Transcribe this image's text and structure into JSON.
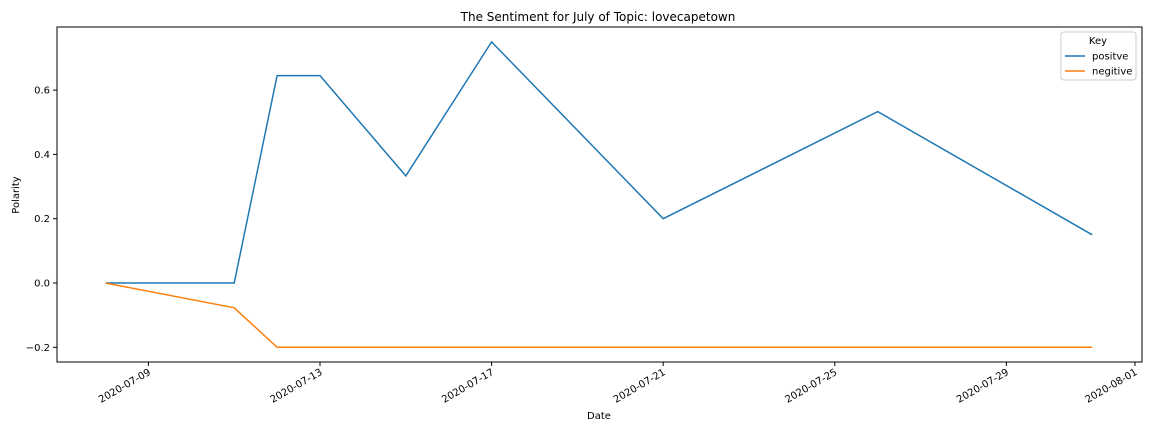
{
  "chart_data": {
    "type": "line",
    "title": "The Sentiment for July of Topic: lovecapetown",
    "xlabel": "Date",
    "ylabel": "Polarity",
    "xlim": [
      "2020-07-07",
      "2020-08-01"
    ],
    "ylim": [
      -0.25,
      0.8
    ],
    "x_ticks": [
      "2020-07-09",
      "2020-07-13",
      "2020-07-17",
      "2020-07-21",
      "2020-07-25",
      "2020-07-29",
      "2020-08-01"
    ],
    "y_ticks": [
      -0.2,
      0.0,
      0.2,
      0.4,
      0.6
    ],
    "y_tick_labels": [
      "−0.2",
      "0.0",
      "0.2",
      "0.4",
      "0.6"
    ],
    "grid": false,
    "legend": {
      "title": "Key",
      "placement": "top-right"
    },
    "series": [
      {
        "name": "positve",
        "color": "#1f77b4",
        "points": [
          {
            "x": "2020-07-08",
            "y": 0.0
          },
          {
            "x": "2020-07-11",
            "y": 0.0
          },
          {
            "x": "2020-07-12",
            "y": 0.645
          },
          {
            "x": "2020-07-13",
            "y": 0.645
          },
          {
            "x": "2020-07-15",
            "y": 0.333
          },
          {
            "x": "2020-07-17",
            "y": 0.75
          },
          {
            "x": "2020-07-21",
            "y": 0.2
          },
          {
            "x": "2020-07-26",
            "y": 0.533
          },
          {
            "x": "2020-07-31",
            "y": 0.15
          }
        ]
      },
      {
        "name": "negitive",
        "color": "#ff7f0e",
        "points": [
          {
            "x": "2020-07-08",
            "y": 0.0
          },
          {
            "x": "2020-07-11",
            "y": -0.077
          },
          {
            "x": "2020-07-12",
            "y": -0.2
          },
          {
            "x": "2020-07-31",
            "y": -0.2
          }
        ]
      }
    ]
  }
}
